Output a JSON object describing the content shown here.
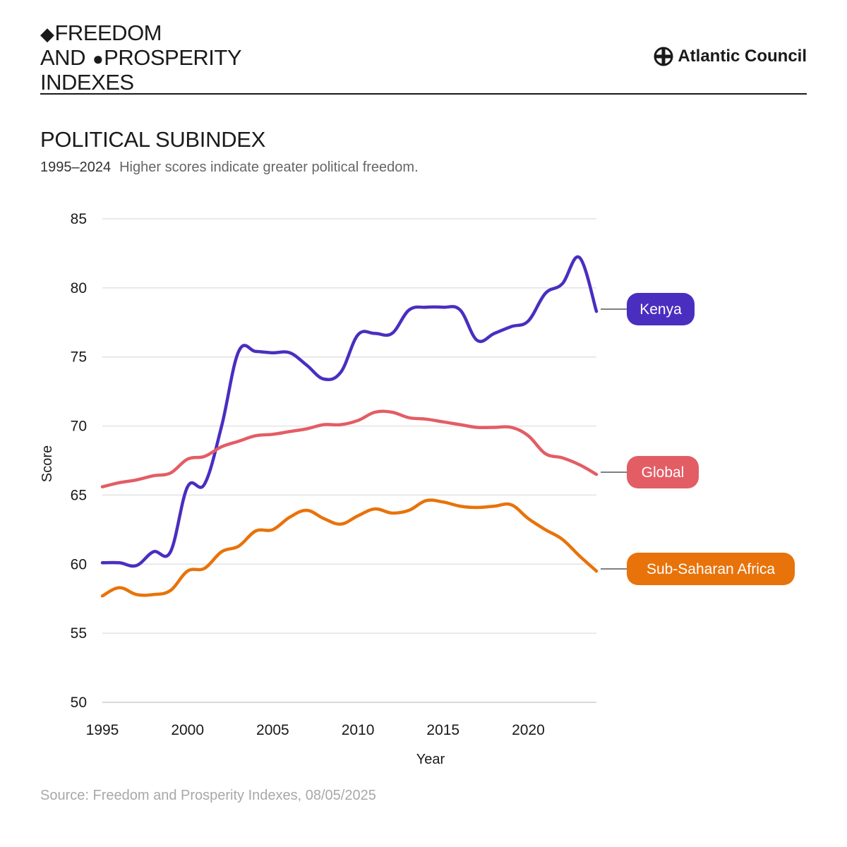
{
  "brand": {
    "diamond_icon": "diamond-icon",
    "line1": "FREEDOM",
    "line2_a": "AND",
    "circle_icon": "circle-icon",
    "line2_b": "PROSPERITY",
    "line3": "INDEXES"
  },
  "publisher": "Atlantic Council",
  "title": "POLITICAL SUBINDEX",
  "subtitle": {
    "years": "1995–2024",
    "description": "Higher scores indicate greater political freedom."
  },
  "source": "Source: Freedom and Prosperity Indexes, 08/05/2025",
  "colors": {
    "kenya": "#4a2ec0",
    "global": "#e35d65",
    "ssa": "#e8730a",
    "grid": "#e3e3e3",
    "text": "#1a1a1a"
  },
  "chart_data": {
    "type": "line",
    "xlabel": "Year",
    "ylabel": "Score",
    "xlim": [
      1995,
      2024
    ],
    "ylim": [
      50,
      85
    ],
    "xticks": [
      1995,
      2000,
      2005,
      2010,
      2015,
      2020
    ],
    "yticks": [
      50,
      55,
      60,
      65,
      70,
      75,
      80,
      85
    ],
    "x": [
      1995,
      1996,
      1997,
      1998,
      1999,
      2000,
      2001,
      2002,
      2003,
      2004,
      2005,
      2006,
      2007,
      2008,
      2009,
      2010,
      2011,
      2012,
      2013,
      2014,
      2015,
      2016,
      2017,
      2018,
      2019,
      2020,
      2021,
      2022,
      2023,
      2024
    ],
    "series": [
      {
        "name": "Kenya",
        "color": "#4a2ec0",
        "values": [
          60.1,
          60.1,
          59.9,
          60.9,
          60.9,
          65.6,
          65.8,
          70.0,
          75.4,
          75.4,
          75.3,
          75.3,
          74.4,
          73.4,
          73.9,
          76.6,
          76.7,
          76.7,
          78.4,
          78.6,
          78.6,
          78.4,
          76.2,
          76.7,
          77.2,
          77.6,
          79.6,
          80.3,
          82.2,
          78.3
        ]
      },
      {
        "name": "Global",
        "color": "#e35d65",
        "values": [
          65.6,
          65.9,
          66.1,
          66.4,
          66.6,
          67.6,
          67.8,
          68.5,
          68.9,
          69.3,
          69.4,
          69.6,
          69.8,
          70.1,
          70.1,
          70.4,
          71.0,
          71.0,
          70.6,
          70.5,
          70.3,
          70.1,
          69.9,
          69.9,
          69.9,
          69.3,
          68.0,
          67.7,
          67.2,
          66.5
        ]
      },
      {
        "name": "Sub-Saharan Africa",
        "color": "#e8730a",
        "values": [
          57.7,
          58.3,
          57.8,
          57.8,
          58.1,
          59.5,
          59.7,
          60.9,
          61.3,
          62.4,
          62.5,
          63.4,
          63.9,
          63.3,
          62.9,
          63.5,
          64.0,
          63.7,
          63.9,
          64.6,
          64.5,
          64.2,
          64.1,
          64.2,
          64.3,
          63.3,
          62.5,
          61.8,
          60.6,
          59.5
        ]
      }
    ]
  }
}
